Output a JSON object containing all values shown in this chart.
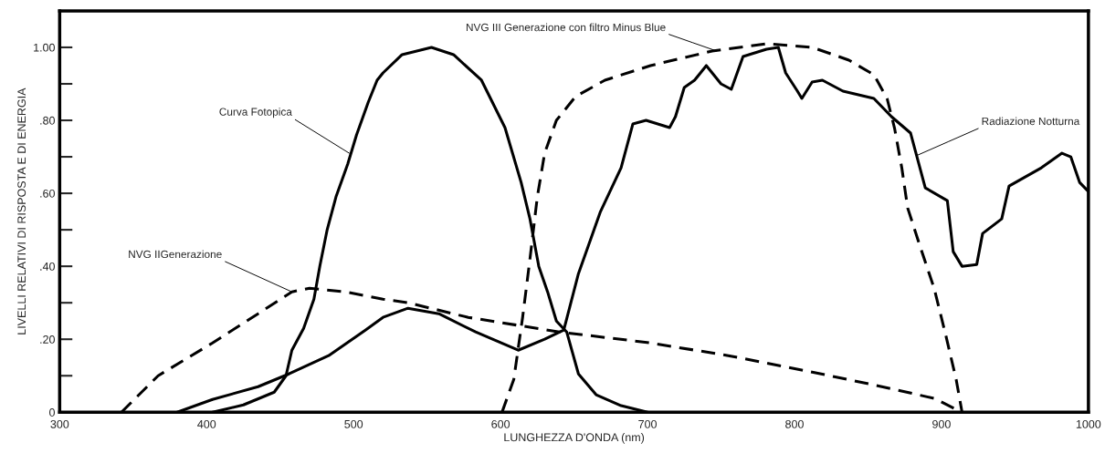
{
  "chart_data": {
    "type": "line",
    "xlabel": "LUNGHEZZA D'ONDA (nm)",
    "ylabel": "LIVELLI RELATIVI DI RISPOSTA E DI ENERGIA",
    "xlim": [
      300,
      1000
    ],
    "xticks": [
      300,
      400,
      500,
      600,
      700,
      800,
      900,
      1000
    ],
    "ylim": [
      0,
      1.1
    ],
    "yticks": [
      {
        "value": 0,
        "label": "0"
      },
      {
        "value": 0.1,
        "label": null
      },
      {
        "value": 0.2,
        "label": ".20"
      },
      {
        "value": 0.3,
        "label": null
      },
      {
        "value": 0.4,
        "label": ".40"
      },
      {
        "value": 0.5,
        "label": null
      },
      {
        "value": 0.6,
        "label": ".60"
      },
      {
        "value": 0.7,
        "label": null
      },
      {
        "value": 0.8,
        "label": ".80"
      },
      {
        "value": 0.9,
        "label": null
      },
      {
        "value": 1.0,
        "label": "1.00"
      }
    ],
    "grid": false,
    "legend": false,
    "series": [
      {
        "color": "#000000",
        "line_style": "solid",
        "x": [
          404,
          425,
          446,
          454,
          458,
          466,
          473,
          477,
          482,
          488,
          496,
          502,
          510,
          516,
          520,
          533,
          553,
          568,
          587,
          603,
          614,
          620,
          626,
          632,
          638,
          645,
          653,
          665,
          682,
          700
        ],
        "values": [
          0,
          0.02,
          0.055,
          0.1,
          0.17,
          0.23,
          0.31,
          0.4,
          0.5,
          0.59,
          0.68,
          0.76,
          0.85,
          0.91,
          0.93,
          0.98,
          1.0,
          0.98,
          0.91,
          0.78,
          0.63,
          0.53,
          0.4,
          0.33,
          0.25,
          0.22,
          0.105,
          0.048,
          0.018,
          0
        ]
      },
      {
        "color": "#000000",
        "line_style": "dashed",
        "x": [
          342,
          367,
          404,
          435,
          458,
          470,
          494,
          520,
          537,
          578,
          640,
          702,
          755,
          812,
          854,
          895,
          914
        ],
        "values": [
          0,
          0.1,
          0.19,
          0.27,
          0.33,
          0.34,
          0.33,
          0.31,
          0.3,
          0.26,
          0.22,
          0.19,
          0.155,
          0.11,
          0.075,
          0.038,
          0
        ]
      },
      {
        "color": "#000000",
        "line_style": "dashed",
        "x": [
          601,
          609,
          615,
          620,
          625,
          630,
          638,
          651,
          671,
          702,
          744,
          781,
          812,
          837,
          854,
          863,
          868,
          873,
          877,
          885,
          895,
          903,
          910,
          914
        ],
        "values": [
          0,
          0.09,
          0.26,
          0.42,
          0.59,
          0.71,
          0.8,
          0.865,
          0.91,
          0.95,
          0.99,
          1.01,
          1.0,
          0.965,
          0.925,
          0.86,
          0.78,
          0.67,
          0.56,
          0.46,
          0.34,
          0.21,
          0.09,
          0
        ]
      },
      {
        "color": "#000000",
        "line_style": "solid",
        "x": [
          380,
          404,
          435,
          456,
          483,
          508,
          520,
          537,
          558,
          583,
          612,
          630,
          643,
          653,
          668,
          682,
          690,
          699,
          715,
          719,
          725,
          732,
          740,
          750,
          757,
          765,
          781,
          789,
          794,
          802,
          805,
          812,
          819,
          833,
          854,
          866,
          879,
          883,
          889,
          904,
          908,
          914,
          924,
          928,
          941,
          946,
          968,
          982,
          988,
          994,
          1000
        ],
        "values": [
          0,
          0.035,
          0.07,
          0.105,
          0.155,
          0.225,
          0.26,
          0.285,
          0.27,
          0.22,
          0.17,
          0.2,
          0.225,
          0.38,
          0.55,
          0.67,
          0.79,
          0.8,
          0.78,
          0.81,
          0.89,
          0.91,
          0.95,
          0.9,
          0.885,
          0.975,
          0.995,
          1.0,
          0.93,
          0.88,
          0.86,
          0.905,
          0.91,
          0.88,
          0.86,
          0.81,
          0.765,
          0.705,
          0.615,
          0.58,
          0.44,
          0.4,
          0.405,
          0.49,
          0.53,
          0.62,
          0.67,
          0.71,
          0.7,
          0.63,
          0.605
        ]
      }
    ],
    "annotations": [
      {
        "text": "Curva Fotopica",
        "x": 497,
        "y": 0.71
      },
      {
        "text": "NVG IIGenerazione",
        "x": 458,
        "y": 0.33
      },
      {
        "text": "NVG III Generazione con filtro Minus Blue",
        "x": 747,
        "y": 0.99
      },
      {
        "text": "Radiazione Notturna",
        "x": 884,
        "y": 0.705
      }
    ]
  }
}
